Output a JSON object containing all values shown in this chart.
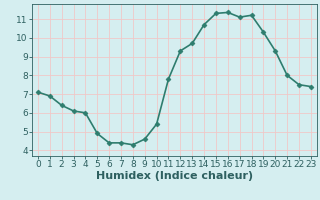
{
  "x": [
    0,
    1,
    2,
    3,
    4,
    5,
    6,
    7,
    8,
    9,
    10,
    11,
    12,
    13,
    14,
    15,
    16,
    17,
    18,
    19,
    20,
    21,
    22,
    23
  ],
  "y": [
    7.1,
    6.9,
    6.4,
    6.1,
    6.0,
    4.9,
    4.4,
    4.4,
    4.3,
    4.6,
    5.4,
    7.8,
    9.3,
    9.7,
    10.7,
    11.3,
    11.35,
    11.1,
    11.2,
    10.3,
    9.3,
    8.0,
    7.5,
    7.4
  ],
  "line_color": "#2e7d6e",
  "marker": "D",
  "marker_size": 2.5,
  "bg_color": "#d5eef0",
  "grid_color": "#f0c8c8",
  "xlabel": "Humidex (Indice chaleur)",
  "xlabel_fontsize": 8,
  "ylabel_ticks": [
    4,
    5,
    6,
    7,
    8,
    9,
    10,
    11
  ],
  "xlim": [
    -0.5,
    23.5
  ],
  "ylim": [
    3.7,
    11.8
  ],
  "xtick_labels": [
    "0",
    "1",
    "2",
    "3",
    "4",
    "5",
    "6",
    "7",
    "8",
    "9",
    "10",
    "11",
    "12",
    "13",
    "14",
    "15",
    "16",
    "17",
    "18",
    "19",
    "20",
    "21",
    "22",
    "23"
  ],
  "tick_fontsize": 6.5,
  "linewidth": 1.2
}
